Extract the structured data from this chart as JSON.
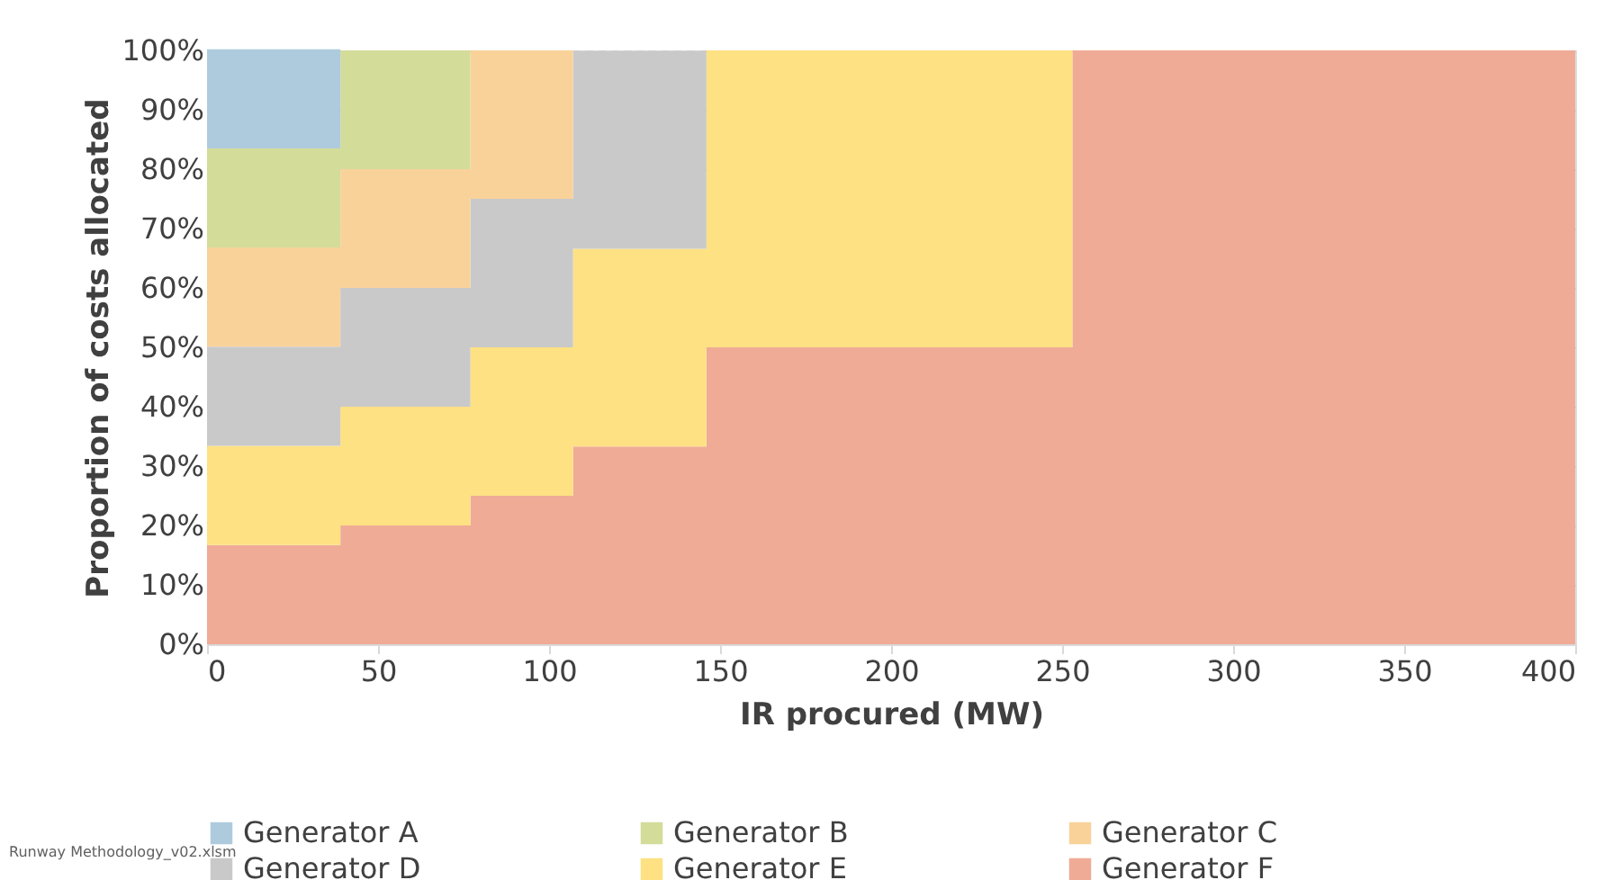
{
  "chart_data": {
    "type": "area",
    "stacked": true,
    "xlabel": "IR procured (MW)",
    "ylabel": "Proportion of costs allocated",
    "x": [
      0,
      39,
      77,
      107,
      146,
      253,
      400
    ],
    "series": [
      {
        "name": "Generator F",
        "color": "#efab96",
        "values": [
          16.7,
          20,
          25,
          33.3,
          50,
          100,
          100
        ]
      },
      {
        "name": "Generator E",
        "color": "#fde183",
        "values": [
          16.7,
          20,
          25,
          33.3,
          50,
          0,
          0
        ]
      },
      {
        "name": "Generator D",
        "color": "#c9c9c9",
        "values": [
          16.7,
          20,
          25,
          33.3,
          0,
          0,
          0
        ]
      },
      {
        "name": "Generator C",
        "color": "#f9d29a",
        "values": [
          16.7,
          20,
          25,
          0,
          0,
          0,
          0
        ]
      },
      {
        "name": "Generator B",
        "color": "#d4dc9a",
        "values": [
          16.7,
          20,
          0,
          0,
          0,
          0,
          0
        ]
      },
      {
        "name": "Generator A",
        "color": "#aecbdd",
        "values": [
          16.7,
          0,
          0,
          0,
          0,
          0,
          0
        ]
      }
    ],
    "xlim": [
      0,
      400
    ],
    "xticks": [
      0,
      50,
      100,
      150,
      200,
      250,
      300,
      350,
      400
    ],
    "ylim": [
      0,
      100
    ],
    "yticks": [
      {
        "value": 0,
        "label": "0%"
      },
      {
        "value": 10,
        "label": "10%"
      },
      {
        "value": 20,
        "label": "20%"
      },
      {
        "value": 30,
        "label": "30%"
      },
      {
        "value": 40,
        "label": "40%"
      },
      {
        "value": 50,
        "label": "50%"
      },
      {
        "value": 60,
        "label": "60%"
      },
      {
        "value": 70,
        "label": "70%"
      },
      {
        "value": 80,
        "label": "80%"
      },
      {
        "value": 90,
        "label": "90%"
      },
      {
        "value": 100,
        "label": "100%"
      }
    ],
    "grid": "y",
    "legend": "bottom",
    "line_style": "dashed",
    "annotations": [
      "Runway Methodology_v02.xlsm"
    ]
  }
}
